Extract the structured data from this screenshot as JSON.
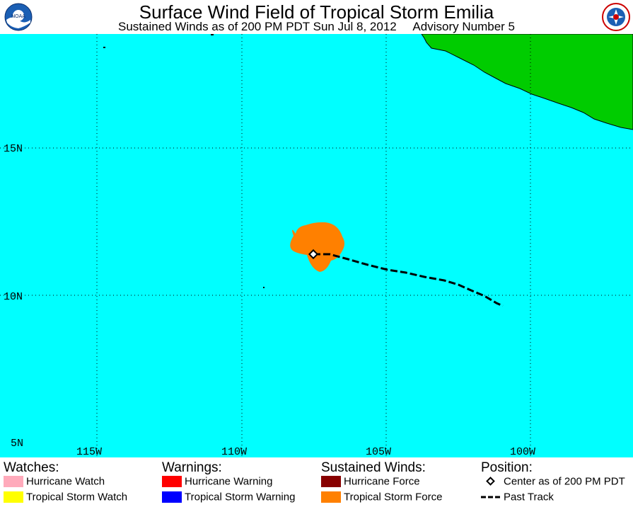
{
  "header": {
    "title": "Surface Wind Field of Tropical Storm Emilia",
    "subtitle": "Sustained Winds as of 200 PM PDT Sun Jul 8, 2012     Advisory Number 5",
    "left_logo_text": "NOAA",
    "right_logo_icon": "nws-logo-icon"
  },
  "map": {
    "colors": {
      "ocean": "#00ffff",
      "land": "#00cc00",
      "tropical_storm_force": "#ff8000",
      "grid": "#000000"
    },
    "lat_labels": [
      "15N",
      "10N",
      "5N"
    ],
    "lon_labels": [
      "115W",
      "110W",
      "105W",
      "100W"
    ]
  },
  "legend": {
    "watches": {
      "heading": "Watches:",
      "items": [
        {
          "label": "Hurricane Watch",
          "color": "#ffaabb"
        },
        {
          "label": "Tropical Storm Watch",
          "color": "#ffff00"
        }
      ]
    },
    "warnings": {
      "heading": "Warnings:",
      "items": [
        {
          "label": "Hurricane Warning",
          "color": "#ff0000"
        },
        {
          "label": "Tropical Storm Warning",
          "color": "#0000ff"
        }
      ]
    },
    "winds": {
      "heading": "Sustained Winds:",
      "items": [
        {
          "label": "Hurricane Force",
          "color": "#880000"
        },
        {
          "label": "Tropical Storm Force",
          "color": "#ff8000"
        }
      ]
    },
    "position": {
      "heading": "Position:",
      "items": [
        {
          "label": "Center as of 200 PM PDT",
          "icon": "diamond-center-icon"
        },
        {
          "label": "Past Track",
          "icon": "dashed-track-icon"
        }
      ]
    }
  }
}
